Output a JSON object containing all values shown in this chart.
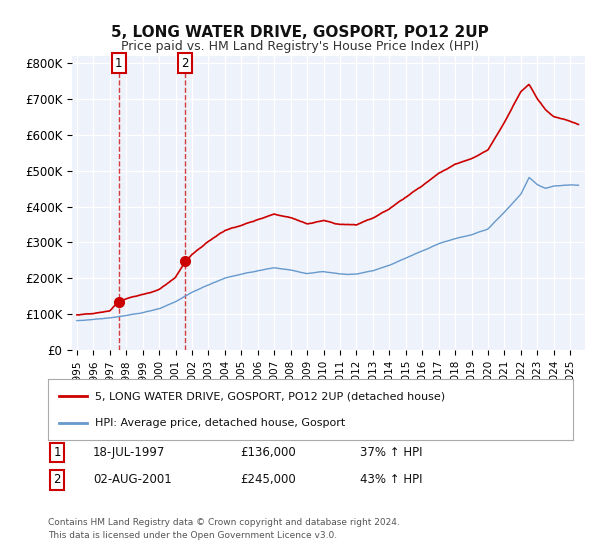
{
  "title": "5, LONG WATER DRIVE, GOSPORT, PO12 2UP",
  "subtitle": "Price paid vs. HM Land Registry's House Price Index (HPI)",
  "ylabel_ticks": [
    "£0",
    "£100K",
    "£200K",
    "£300K",
    "£400K",
    "£500K",
    "£600K",
    "£700K",
    "£800K"
  ],
  "ytick_vals": [
    0,
    100000,
    200000,
    300000,
    400000,
    500000,
    600000,
    700000,
    800000
  ],
  "ylim": [
    0,
    820000
  ],
  "sale1_date": 1997.54,
  "sale1_price": 136000,
  "sale2_date": 2001.59,
  "sale2_price": 245000,
  "hpi_color": "#6699cc",
  "price_color": "#cc0000",
  "background_color": "#eef2fb",
  "grid_color": "#ffffff",
  "legend_label_price": "5, LONG WATER DRIVE, GOSPORT, PO12 2UP (detached house)",
  "legend_label_hpi": "HPI: Average price, detached house, Gosport",
  "footer": "Contains HM Land Registry data © Crown copyright and database right 2024.\nThis data is licensed under the Open Government Licence v3.0.",
  "xtick_years": [
    1995,
    1996,
    1997,
    1998,
    1999,
    2000,
    2001,
    2002,
    2003,
    2004,
    2005,
    2006,
    2007,
    2008,
    2009,
    2010,
    2011,
    2012,
    2013,
    2014,
    2015,
    2016,
    2017,
    2018,
    2019,
    2020,
    2021,
    2022,
    2023,
    2024,
    2025
  ],
  "hpi_ctrl": [
    [
      1995.0,
      82000
    ],
    [
      1996.0,
      85000
    ],
    [
      1997.0,
      90000
    ],
    [
      1998.0,
      95000
    ],
    [
      1999.0,
      102000
    ],
    [
      2000.0,
      112000
    ],
    [
      2001.0,
      132000
    ],
    [
      2002.0,
      158000
    ],
    [
      2003.0,
      178000
    ],
    [
      2004.0,
      198000
    ],
    [
      2005.0,
      208000
    ],
    [
      2006.0,
      218000
    ],
    [
      2007.0,
      228000
    ],
    [
      2008.0,
      222000
    ],
    [
      2009.0,
      212000
    ],
    [
      2010.0,
      218000
    ],
    [
      2011.0,
      212000
    ],
    [
      2012.0,
      212000
    ],
    [
      2013.0,
      222000
    ],
    [
      2014.0,
      238000
    ],
    [
      2015.0,
      258000
    ],
    [
      2016.0,
      278000
    ],
    [
      2017.0,
      298000
    ],
    [
      2018.0,
      312000
    ],
    [
      2019.0,
      322000
    ],
    [
      2020.0,
      338000
    ],
    [
      2021.0,
      385000
    ],
    [
      2022.0,
      435000
    ],
    [
      2022.5,
      482000
    ],
    [
      2023.0,
      462000
    ],
    [
      2023.5,
      452000
    ],
    [
      2024.0,
      458000
    ],
    [
      2025.0,
      462000
    ],
    [
      2025.5,
      462000
    ]
  ],
  "price_ctrl": [
    [
      1995.0,
      98000
    ],
    [
      1996.0,
      103000
    ],
    [
      1997.0,
      110000
    ],
    [
      1997.54,
      136000
    ],
    [
      1998.0,
      143000
    ],
    [
      1999.0,
      154000
    ],
    [
      2000.0,
      169000
    ],
    [
      2001.0,
      202000
    ],
    [
      2001.59,
      245000
    ],
    [
      2002.0,
      265000
    ],
    [
      2003.0,
      302000
    ],
    [
      2004.0,
      332000
    ],
    [
      2005.0,
      347000
    ],
    [
      2006.0,
      362000
    ],
    [
      2007.0,
      378000
    ],
    [
      2008.0,
      368000
    ],
    [
      2009.0,
      352000
    ],
    [
      2010.0,
      362000
    ],
    [
      2011.0,
      352000
    ],
    [
      2012.0,
      352000
    ],
    [
      2013.0,
      370000
    ],
    [
      2014.0,
      396000
    ],
    [
      2015.0,
      428000
    ],
    [
      2016.0,
      462000
    ],
    [
      2017.0,
      496000
    ],
    [
      2018.0,
      522000
    ],
    [
      2019.0,
      538000
    ],
    [
      2020.0,
      562000
    ],
    [
      2021.0,
      638000
    ],
    [
      2022.0,
      722000
    ],
    [
      2022.5,
      742000
    ],
    [
      2023.0,
      702000
    ],
    [
      2023.5,
      672000
    ],
    [
      2024.0,
      652000
    ],
    [
      2025.0,
      638000
    ],
    [
      2025.5,
      628000
    ]
  ]
}
